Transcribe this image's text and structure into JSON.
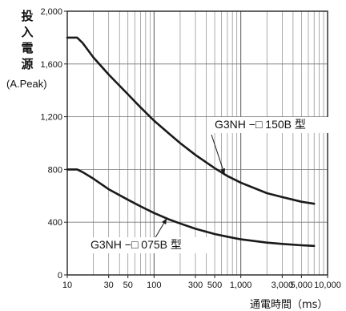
{
  "chart_data": {
    "type": "line",
    "title": "",
    "ylabel_chars": [
      "投",
      "入",
      "電",
      "源"
    ],
    "ylabel_unit": "(A.Peak)",
    "xlabel": "通電時間（ms）",
    "xscale": "log",
    "xlim": [
      10,
      10000
    ],
    "ylim": [
      0,
      2000
    ],
    "grid": true,
    "x_ticks": [
      10,
      30,
      50,
      100,
      300,
      500,
      1000,
      3000,
      5000,
      10000
    ],
    "x_tick_labels": [
      "10",
      "30",
      "50",
      "100",
      "300",
      "500",
      "1,000",
      "3,000",
      "5,000",
      "10,000"
    ],
    "y_ticks": [
      0,
      400,
      800,
      1200,
      1600,
      2000
    ],
    "y_tick_labels": [
      "0",
      "400",
      "800",
      "1,200",
      "1,600",
      "2,000"
    ],
    "series": [
      {
        "name": "G3NH −□ 150B 型",
        "x": [
          10,
          13,
          15,
          20,
          30,
          50,
          70,
          100,
          150,
          200,
          300,
          500,
          700,
          1000,
          2000,
          3000,
          5000,
          7000
        ],
        "y": [
          1800,
          1800,
          1760,
          1650,
          1520,
          1370,
          1270,
          1170,
          1070,
          1000,
          910,
          810,
          750,
          700,
          620,
          590,
          555,
          540
        ]
      },
      {
        "name": "G3NH −□ 075B 型",
        "x": [
          10,
          13,
          15,
          20,
          30,
          50,
          70,
          100,
          150,
          200,
          300,
          500,
          700,
          1000,
          2000,
          3000,
          5000,
          7000
        ],
        "y": [
          800,
          800,
          780,
          730,
          650,
          570,
          520,
          470,
          420,
          390,
          350,
          310,
          290,
          270,
          245,
          235,
          225,
          220
        ]
      }
    ]
  }
}
